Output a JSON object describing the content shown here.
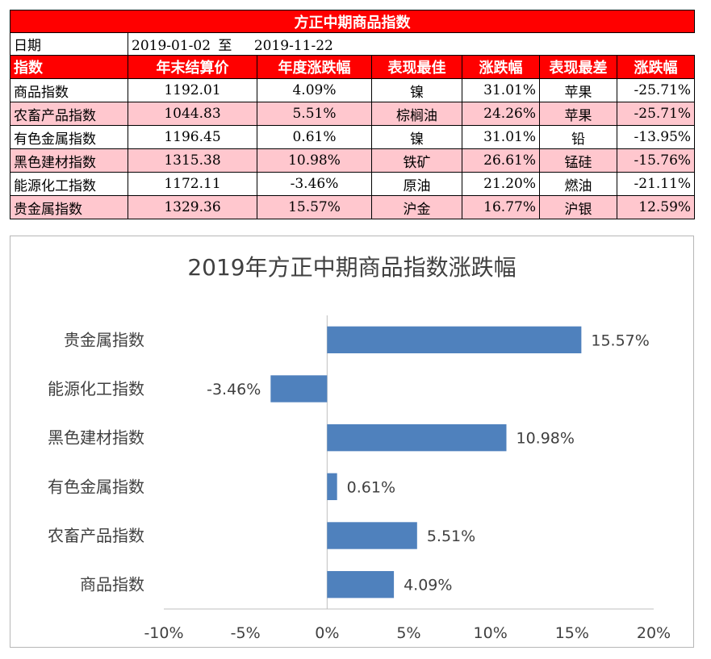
{
  "table": {
    "title": "方正中期商品指数",
    "date_label": "日期",
    "date_from": "2019-01-02",
    "date_sep": "至",
    "date_to": "2019-11-22",
    "headers": [
      "指数",
      "年末结算价",
      "年度涨跌幅",
      "表现最佳",
      "涨跌幅",
      "表现最差",
      "涨跌幅"
    ],
    "rows": [
      [
        "商品指数",
        "1192.01",
        "4.09%",
        "镍",
        "31.01%",
        "苹果",
        "-25.71%"
      ],
      [
        "农畜产品指数",
        "1044.83",
        "5.51%",
        "棕榈油",
        "24.26%",
        "苹果",
        "-25.71%"
      ],
      [
        "有色金属指数",
        "1196.45",
        "0.61%",
        "镍",
        "31.01%",
        "铅",
        "-13.95%"
      ],
      [
        "黑色建材指数",
        "1315.38",
        "10.98%",
        "铁矿",
        "26.61%",
        "锰硅",
        "-15.76%"
      ],
      [
        "能源化工指数",
        "1172.11",
        "-3.46%",
        "原油",
        "21.20%",
        "燃油",
        "-21.11%"
      ],
      [
        "贵金属指数",
        "1329.36",
        "15.57%",
        "沪金",
        "16.77%",
        "沪银",
        "12.59%"
      ]
    ],
    "header_color": "#ff0000",
    "stripe_color": "#ffc7ce"
  },
  "chart_data": {
    "type": "bar",
    "orientation": "horizontal",
    "title": "2019年方正中期商品指数涨跌幅",
    "categories": [
      "贵金属指数",
      "能源化工指数",
      "黑色建材指数",
      "有色金属指数",
      "农畜产品指数",
      "商品指数"
    ],
    "values": [
      15.57,
      -3.46,
      10.98,
      0.61,
      5.51,
      4.09
    ],
    "value_labels": [
      "15.57%",
      "-3.46%",
      "10.98%",
      "0.61%",
      "5.51%",
      "4.09%"
    ],
    "xlim": [
      -10,
      20
    ],
    "xticks": [
      -10,
      -5,
      0,
      5,
      10,
      15,
      20
    ],
    "xtick_labels": [
      "-10%",
      "-5%",
      "0%",
      "5%",
      "10%",
      "15%",
      "20%"
    ],
    "bar_color": "#4f81bd",
    "grid": false,
    "legend": "none"
  }
}
